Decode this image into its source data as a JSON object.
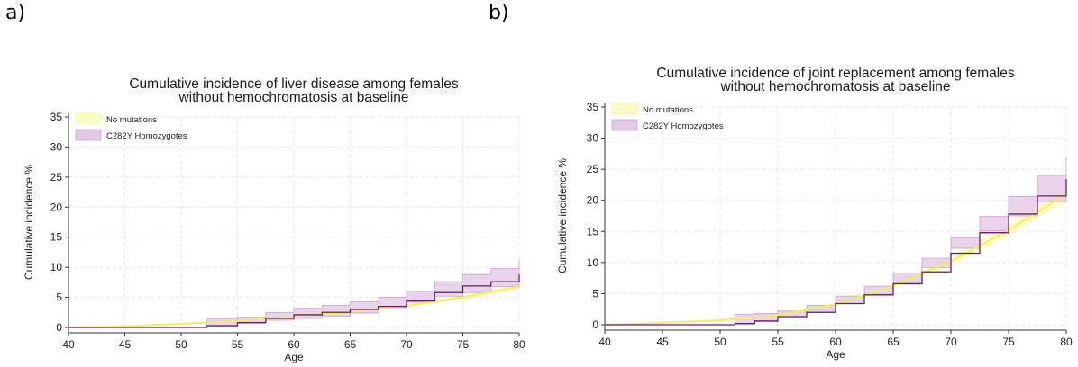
{
  "panels": [
    {
      "letter": "a)"
    },
    {
      "letter": "b)"
    }
  ],
  "colors": {
    "no_mutations_line": "#efef66",
    "no_mutations_band": "#fbfbc4",
    "c282y_line": "#6b1a66",
    "c282y_band": "#e3c9e6",
    "c282y_band_edge": "#c9a3cf",
    "grid": "#e6e6e6"
  },
  "chart_data": [
    {
      "type": "line",
      "title": "Cumulative incidence of liver disease among females",
      "subtitle": "without hemochromatosis at baseline",
      "xlabel": "Age",
      "ylabel": "Cumulative incidence %",
      "xlim": [
        40,
        80
      ],
      "ylim": [
        0,
        35
      ],
      "xticks": [
        40,
        45,
        50,
        55,
        60,
        65,
        70,
        75,
        80
      ],
      "yticks": [
        0,
        5,
        10,
        15,
        20,
        25,
        30,
        35
      ],
      "grid": true,
      "legend_position": "top-left",
      "series": [
        {
          "name": "No mutations",
          "x": [
            40,
            45,
            50,
            55,
            60,
            65,
            70,
            75,
            80
          ],
          "y": [
            0,
            0.2,
            0.6,
            1.1,
            1.8,
            2.6,
            3.6,
            5.0,
            6.8
          ]
        },
        {
          "name": "C282Y Homozygotes",
          "x": [
            40,
            45,
            50,
            52.3,
            55,
            57.5,
            60,
            62.5,
            65,
            67.5,
            70,
            72.5,
            75,
            77.5,
            80
          ],
          "y": [
            0,
            0,
            0,
            0.3,
            0.8,
            1.5,
            2.1,
            2.5,
            3.0,
            3.5,
            4.4,
            5.8,
            6.9,
            7.6,
            8.8
          ],
          "lower": [
            0,
            0,
            0,
            0,
            0.2,
            0.7,
            1.2,
            1.5,
            1.9,
            2.4,
            3.1,
            4.2,
            5.2,
            5.8,
            6.8
          ],
          "upper": [
            0,
            0,
            0,
            1.4,
            1.7,
            2.5,
            3.2,
            3.7,
            4.3,
            5.0,
            6.0,
            7.6,
            8.8,
            9.8,
            11.3
          ]
        }
      ]
    },
    {
      "type": "line",
      "title": "Cumulative incidence of joint replacement among females",
      "subtitle": "without hemochromatosis at baseline",
      "xlabel": "Age",
      "ylabel": "Cumulative incidence %",
      "xlim": [
        40,
        80
      ],
      "ylim": [
        0,
        35
      ],
      "xticks": [
        40,
        45,
        50,
        55,
        60,
        65,
        70,
        75,
        80
      ],
      "yticks": [
        0,
        5,
        10,
        15,
        20,
        25,
        30,
        35
      ],
      "grid": true,
      "legend_position": "top-left",
      "series": [
        {
          "name": "No mutations",
          "x": [
            40,
            45,
            50,
            55,
            60,
            65,
            70,
            75,
            80
          ],
          "y": [
            0,
            0.3,
            0.7,
            1.5,
            3.3,
            6.2,
            10.2,
            15.2,
            21.0
          ]
        },
        {
          "name": "C282Y Homozygotes",
          "x": [
            40,
            45,
            50,
            51.3,
            53,
            55,
            57.5,
            60,
            62.5,
            65,
            67.5,
            70,
            72.5,
            75,
            77.5,
            80
          ],
          "y": [
            0,
            0,
            0,
            0.2,
            0.6,
            1.3,
            2.0,
            3.4,
            4.8,
            6.6,
            8.5,
            11.5,
            14.8,
            17.8,
            20.7,
            23.4
          ],
          "lower": [
            0,
            0,
            0,
            0,
            0.1,
            0.5,
            1.1,
            2.3,
            3.4,
            4.9,
            6.5,
            9.2,
            12.3,
            15.1,
            17.5,
            19.8
          ],
          "upper": [
            0,
            0,
            0,
            1.7,
            1.8,
            2.2,
            3.1,
            4.6,
            6.2,
            8.3,
            10.7,
            14.0,
            17.4,
            20.6,
            23.9,
            27.1
          ]
        }
      ]
    }
  ]
}
